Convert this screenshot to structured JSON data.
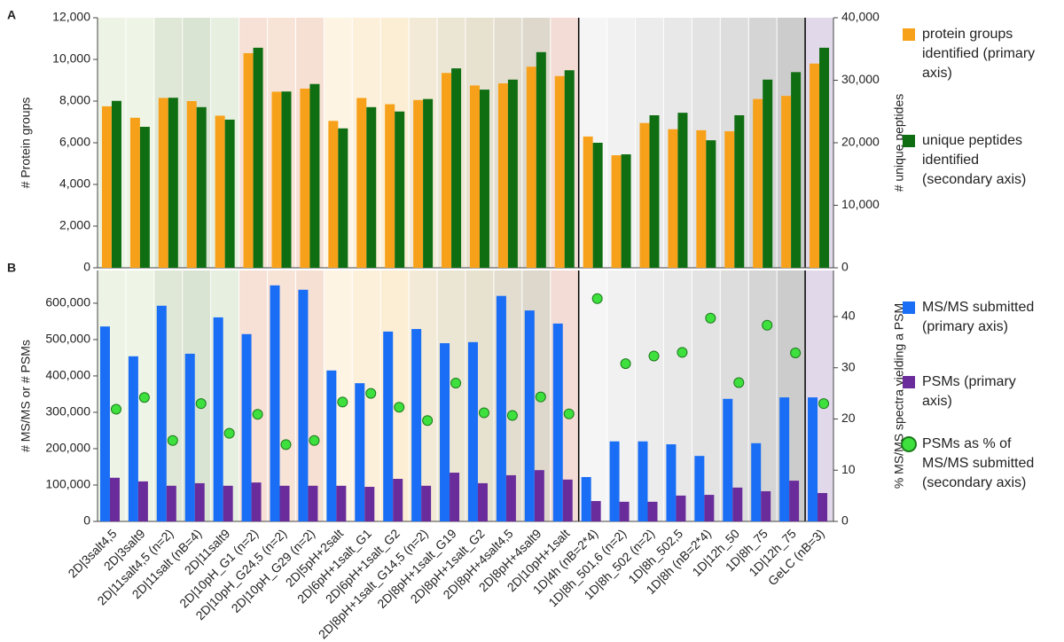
{
  "chart_data": [
    {
      "type": "bar",
      "panel_label": "A",
      "ylabel": "# Protein groups",
      "y2label": "# unique peptides",
      "ylim": [
        0,
        12000
      ],
      "yticks": [
        0,
        {
          "value": 2000,
          "label": "2,000"
        },
        {
          "value": 4000,
          "label": "4,000"
        },
        {
          "value": 6000,
          "label": "6,000"
        },
        {
          "value": 8000,
          "label": "8,000"
        },
        {
          "value": 10000,
          "label": "10,000"
        },
        {
          "value": 12000,
          "label": "12,000"
        }
      ],
      "y2lim": [
        0,
        40000
      ],
      "y2ticks": [
        0,
        {
          "value": 10000,
          "label": "10,000"
        },
        {
          "value": 20000,
          "label": "20,000"
        },
        {
          "value": 30000,
          "label": "30,000"
        },
        {
          "value": 40000,
          "label": "40,000"
        }
      ],
      "series": [
        {
          "name": "protein groups identified (primary axis)",
          "color": "#f7a11a",
          "type": "bar",
          "axis": "y",
          "values": [
            7750,
            7200,
            8150,
            8000,
            7300,
            10300,
            8450,
            8600,
            7050,
            8150,
            7850,
            8050,
            9350,
            8750,
            8850,
            9650,
            9200,
            6300,
            5400,
            6950,
            6650,
            6600,
            6550,
            8100,
            8250,
            9800
          ]
        },
        {
          "name": "unique peptides identified (secondary axis)",
          "color": "#0f6e12",
          "type": "bar",
          "axis": "y2",
          "values": [
            26700,
            22550,
            27200,
            25700,
            23700,
            35200,
            28200,
            29400,
            22300,
            25700,
            25000,
            27000,
            31900,
            28500,
            30100,
            34500,
            31600,
            20000,
            18150,
            24400,
            24800,
            20400,
            24400,
            30100,
            31300,
            35200
          ]
        }
      ]
    },
    {
      "type": "bar",
      "panel_label": "B",
      "ylabel": "# MS/MS or # PSMs",
      "y2label": "% MS/MS spectra yielding a PSM",
      "categories": [
        "2D|3salt4,5",
        "2D|3salt9",
        "2D|11salt4,5 (n=2)",
        "2D|11salt (nB=4)",
        "2D|11salt9",
        "2D|10pH_G1 (n=2)",
        "2D|10pH_G24,5 (n=2)",
        "2D|10pH_G29 (n=2)",
        "2D|5pH+2salt",
        "2D|6pH+1salt_G1",
        "2D|6pH+1salt_G2",
        "2D|8pH+1salt_G14,5 (n=2)",
        "2D|8pH+1salt_G19",
        "2D|8pH+1salt_G2",
        "2D|8pH+4salt4,5",
        "2D|8pH+4salt9",
        "2D|10pH+1salt",
        "1D|4h (nB=2*4)",
        "1D|8h_501,6 (n=2)",
        "1D|8h_502 (n=2)",
        "1D|8h_502,5",
        "1D|8h (nB=2*4)",
        "1D|12h_50",
        "1D|8h_75",
        "1D|12h_75",
        "GeLC (nB=3)"
      ],
      "ylim": [
        0,
        690000
      ],
      "yticks": [
        0,
        {
          "value": 100000,
          "label": "100,000"
        },
        {
          "value": 200000,
          "label": "200,000"
        },
        {
          "value": 300000,
          "label": "300,000"
        },
        {
          "value": 400000,
          "label": "400,000"
        },
        {
          "value": 500000,
          "label": "500,000"
        },
        {
          "value": 600000,
          "label": "600,000"
        }
      ],
      "y2lim": [
        0,
        49
      ],
      "y2ticks": [
        0,
        10,
        20,
        30,
        40
      ],
      "series": [
        {
          "name": "MS/MS submitted (primary axis)",
          "color": "#1a6ef5",
          "type": "bar",
          "axis": "y",
          "values": [
            536000,
            454000,
            593000,
            461000,
            561000,
            515000,
            649000,
            637000,
            415000,
            380000,
            522000,
            529000,
            490000,
            493000,
            620000,
            580000,
            544000,
            122000,
            220000,
            220000,
            212000,
            180000,
            337000,
            215000,
            341000,
            341000
          ]
        },
        {
          "name": "PSMs (primary axis)",
          "color": "#6a2c9a",
          "type": "bar",
          "axis": "y",
          "values": [
            120000,
            110000,
            98000,
            105000,
            98000,
            107000,
            98000,
            98000,
            98000,
            95000,
            117000,
            98000,
            134000,
            105000,
            127000,
            141000,
            115000,
            56000,
            54000,
            54000,
            71000,
            73000,
            93000,
            83000,
            112000,
            78000
          ]
        },
        {
          "name": "PSMs as % of MS/MS submitted (secondary axis)",
          "color": "#3ee03e",
          "type": "scatter",
          "axis": "y2",
          "values": [
            21.9,
            24.2,
            15.8,
            23.0,
            17.2,
            20.9,
            15.0,
            15.8,
            23.3,
            25.0,
            22.3,
            19.7,
            27.0,
            21.2,
            20.7,
            24.3,
            21.0,
            43.5,
            30.8,
            32.3,
            33.0,
            39.7,
            27.1,
            38.3,
            32.9,
            23.0
          ]
        }
      ]
    }
  ]
}
